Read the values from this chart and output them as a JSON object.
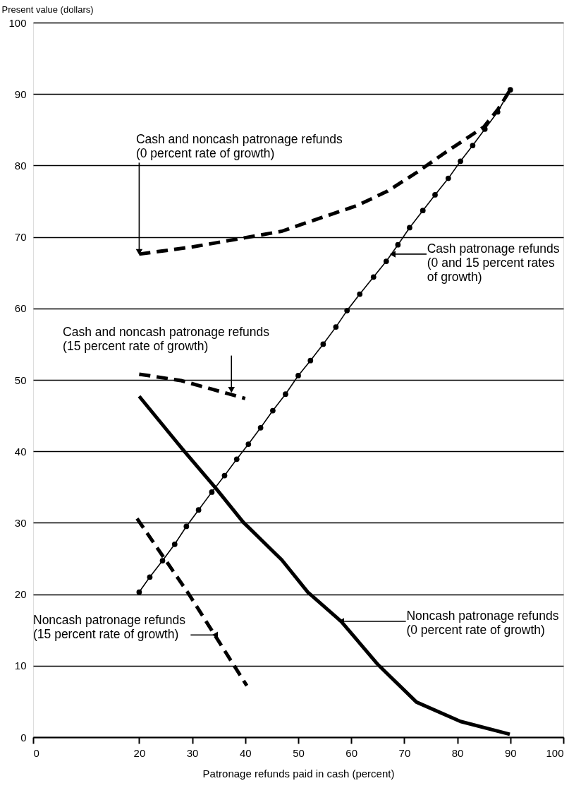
{
  "chart_data": {
    "type": "line",
    "xlabel": "Patronage refunds paid in cash (percent)",
    "ylabel": "Present value (dollars)",
    "xlim": [
      0,
      100
    ],
    "ylim": [
      0,
      100
    ],
    "xticks": [
      0,
      20,
      30,
      40,
      50,
      60,
      70,
      80,
      90,
      100
    ],
    "yticks": [
      0,
      10,
      20,
      30,
      40,
      50,
      60,
      70,
      80,
      90,
      100
    ],
    "grid": "y",
    "series": [
      {
        "color": "#000000",
        "line_style": "solid",
        "marker": "circle",
        "x": [
          20,
          22,
          24.4,
          26.7,
          28.9,
          31.2,
          33.7,
          36.1,
          38.4,
          40.6,
          42.9,
          45.2,
          47.6,
          50,
          52.3,
          54.7,
          57.1,
          59.2,
          61.6,
          64.2,
          66.6,
          68.8,
          71,
          73.5,
          75.8,
          78.3,
          80.6,
          82.9,
          85.2,
          87.6,
          90
        ],
        "values": [
          20.3,
          22.4,
          24.7,
          27,
          29.5,
          31.8,
          34.3,
          36.6,
          38.9,
          41,
          43.3,
          45.7,
          48,
          50.6,
          52.7,
          55,
          57.4,
          59.7,
          62,
          64.4,
          66.6,
          68.9,
          71.3,
          73.7,
          75.9,
          78.2,
          80.6,
          82.8,
          85.1,
          87.5,
          90.6
        ]
      },
      {
        "color": "#000000",
        "line_style": "solid",
        "marker": "none",
        "x": [
          20,
          28.4,
          34.5,
          39.6,
          46.9,
          51.8,
          58.1,
          65.1,
          72.3,
          80.6,
          89.9
        ],
        "values": [
          47.7,
          40.1,
          34.8,
          30.1,
          24.8,
          20.3,
          16.2,
          10.1,
          4.9,
          2.2,
          0.4
        ]
      },
      {
        "color": "#000000",
        "line_style": "dashed",
        "marker": "none",
        "x": [
          20,
          30,
          40,
          46.9,
          50,
          61.1,
          66.8,
          72.5,
          77.3,
          85,
          87.7,
          90
        ],
        "values": [
          67.6,
          68.6,
          69.9,
          70.8,
          71.6,
          74.4,
          76.4,
          79.1,
          81.6,
          85.4,
          87.9,
          90.6
        ]
      },
      {
        "color": "#000000",
        "line_style": "dashed",
        "marker": "none",
        "x": [
          20,
          27.9,
          40
        ],
        "values": [
          50.8,
          49.9,
          47.4
        ]
      },
      {
        "color": "#000000",
        "line_style": "dashed",
        "marker": "none",
        "x": [
          19.6,
          29.3,
          40.3
        ],
        "values": [
          30.6,
          20.1,
          7.2
        ]
      }
    ],
    "annotations": [
      {
        "text": "Cash and noncash patronage refunds\n(0 percent rate of growth)",
        "x": 20,
        "y": 67.9
      },
      {
        "text": "Cash patronage refunds\n(0 and 15 percent rates\n of growth)",
        "x": 67.8,
        "y": 67.6
      },
      {
        "text": "Cash and noncash patronage refunds\n(15 percent rate of growth)",
        "x": 37.4,
        "y": 48.6
      },
      {
        "text": "Noncash patronage refunds\n(15 percent rate of growth)",
        "x": 34.3,
        "y": 14.3
      },
      {
        "text": "Noncash patronage refunds\n(0 percent rate of growth)",
        "x": 58.1,
        "y": 16.2
      }
    ]
  }
}
